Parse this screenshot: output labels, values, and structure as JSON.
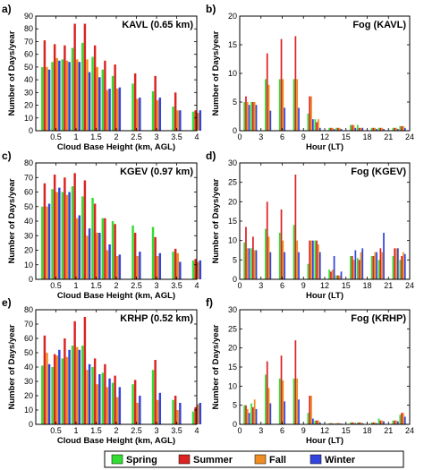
{
  "legend": {
    "items": [
      {
        "label": "Spring",
        "color": "#33dd33"
      },
      {
        "label": "Summer",
        "color": "#dd2222"
      },
      {
        "label": "Fall",
        "color": "#f08c22"
      },
      {
        "label": "Winter",
        "color": "#3344dd"
      }
    ]
  },
  "chart_data": [
    {
      "panel": "a)",
      "title": "KAVL (0.65 km)",
      "type": "bar",
      "xlabel": "Cloud Base Height (km, AGL)",
      "ylabel": "Number of Days/year",
      "xlim": [
        0,
        4
      ],
      "ylim": [
        0,
        90
      ],
      "xticks": [
        0.5,
        1,
        1.5,
        2,
        2.5,
        3,
        3.5,
        4
      ],
      "yticks": [
        0,
        10,
        20,
        30,
        40,
        50,
        60,
        70,
        80,
        90
      ],
      "x": [
        0.25,
        0.5,
        0.75,
        1,
        1.25,
        1.5,
        1.75,
        2,
        2.5,
        3,
        3.5,
        4
      ],
      "series": [
        {
          "name": "Spring",
          "values": [
            50,
            54,
            56,
            65,
            69,
            58,
            48,
            43,
            37,
            31,
            19,
            15
          ]
        },
        {
          "name": "Summer",
          "values": [
            71,
            68,
            67,
            84,
            84,
            67,
            55,
            52,
            45,
            43,
            30,
            16
          ]
        },
        {
          "name": "Fall",
          "values": [
            50,
            57,
            55,
            56,
            56,
            50,
            32,
            33,
            25,
            24,
            16,
            14
          ]
        },
        {
          "name": "Winter",
          "values": [
            48,
            55,
            54,
            54,
            46,
            42,
            33,
            34,
            26,
            26,
            16,
            16
          ]
        }
      ]
    },
    {
      "panel": "b)",
      "title": "Fog (KAVL)",
      "type": "bar",
      "xlabel": "Hour (LT)",
      "ylabel": "Number of Days/year",
      "xlim": [
        0,
        24
      ],
      "ylim": [
        0,
        20
      ],
      "xticks": [
        0,
        3,
        6,
        9,
        12,
        15,
        18,
        21,
        24
      ],
      "yticks": [
        0,
        5,
        10,
        15,
        20
      ],
      "x": [
        1,
        2,
        4,
        6,
        8,
        10,
        11,
        13,
        14,
        16,
        17,
        19,
        20,
        22,
        23
      ],
      "series": [
        {
          "name": "Spring",
          "values": [
            5,
            5,
            9,
            9,
            9,
            3,
            2,
            0.5,
            0.5,
            1,
            1,
            0.5,
            0.5,
            0.5,
            0.8
          ]
        },
        {
          "name": "Summer",
          "values": [
            6,
            5,
            13.5,
            16,
            16.5,
            6,
            1.5,
            0.5,
            0.5,
            1,
            0.5,
            0.5,
            0.5,
            0.5,
            0.8
          ]
        },
        {
          "name": "Fall",
          "values": [
            5,
            5,
            8,
            9,
            9,
            6,
            2,
            0.5,
            0.5,
            1,
            0.5,
            0.5,
            0.5,
            0.5,
            0.8
          ]
        },
        {
          "name": "Winter",
          "values": [
            4.5,
            4.5,
            3.5,
            4,
            4,
            2,
            0.5,
            0.3,
            0.3,
            0.5,
            0.5,
            0.3,
            0.3,
            0.3,
            0.5
          ]
        }
      ]
    },
    {
      "panel": "c)",
      "title": "KGEV (0.97 km)",
      "type": "bar",
      "xlabel": "Cloud Base Height (km, AGL)",
      "ylabel": "Number of Days/year",
      "xlim": [
        0,
        4
      ],
      "ylim": [
        0,
        80
      ],
      "xticks": [
        0.5,
        1,
        1.5,
        2,
        2.5,
        3,
        3.5,
        4
      ],
      "yticks": [
        0,
        10,
        20,
        30,
        40,
        50,
        60,
        70,
        80
      ],
      "x": [
        0.25,
        0.5,
        0.75,
        1,
        1.25,
        1.5,
        1.75,
        2,
        2.5,
        3,
        3.5,
        4
      ],
      "series": [
        {
          "name": "Spring",
          "values": [
            50,
            62,
            60,
            64,
            57,
            56,
            42,
            40,
            37,
            36,
            19,
            13
          ]
        },
        {
          "name": "Summer",
          "values": [
            66,
            72,
            70,
            73,
            68,
            52,
            42,
            38,
            32,
            29,
            21,
            14
          ]
        },
        {
          "name": "Fall",
          "values": [
            50,
            60,
            58,
            42,
            30,
            32,
            20,
            16,
            16,
            16,
            18,
            12
          ]
        },
        {
          "name": "Winter",
          "values": [
            52,
            63,
            60,
            44,
            35,
            32,
            24,
            17,
            19,
            18,
            12,
            13
          ]
        }
      ]
    },
    {
      "panel": "d)",
      "title": "Fog (KGEV)",
      "type": "bar",
      "xlabel": "Hour (LT)",
      "ylabel": "Number of Days/year",
      "xlim": [
        0,
        24
      ],
      "ylim": [
        0,
        30
      ],
      "xticks": [
        0,
        3,
        6,
        9,
        12,
        15,
        18,
        21,
        24
      ],
      "yticks": [
        0,
        5,
        10,
        15,
        20,
        25,
        30
      ],
      "x": [
        1,
        2,
        4,
        6,
        8,
        10,
        11,
        13,
        14,
        16,
        17,
        19,
        20,
        22,
        23
      ],
      "series": [
        {
          "name": "Spring",
          "values": [
            9.5,
            8,
            13,
            12,
            14,
            4,
            10,
            2.5,
            1,
            6,
            5.5,
            6,
            5,
            6,
            5
          ]
        },
        {
          "name": "Summer",
          "values": [
            13.5,
            11,
            20,
            18,
            27,
            10,
            10,
            2,
            1,
            6,
            5,
            6,
            8,
            8,
            6
          ]
        },
        {
          "name": "Fall",
          "values": [
            8,
            7.5,
            11,
            10,
            10,
            10,
            9,
            2.5,
            1,
            5,
            7,
            7,
            7,
            8,
            7
          ]
        },
        {
          "name": "Winter",
          "values": [
            8,
            7.5,
            7,
            7,
            7,
            10,
            7,
            6,
            2,
            7.5,
            8,
            7,
            12,
            8,
            6.5
          ]
        }
      ]
    },
    {
      "panel": "e)",
      "title": "KRHP (0.52 km)",
      "type": "bar",
      "xlabel": "Cloud Base Height (km, AGL)",
      "ylabel": "Number of Days/year",
      "xlim": [
        0,
        4
      ],
      "ylim": [
        0,
        80
      ],
      "xticks": [
        0.5,
        1,
        1.5,
        2,
        2.5,
        3,
        3.5,
        4
      ],
      "yticks": [
        0,
        10,
        20,
        30,
        40,
        50,
        60,
        70,
        80
      ],
      "x": [
        0.25,
        0.5,
        0.75,
        1,
        1.25,
        1.5,
        1.75,
        2,
        2.5,
        3,
        3.5,
        4
      ],
      "series": [
        {
          "name": "Spring",
          "values": [
            41,
            40,
            46,
            55,
            55,
            40,
            36,
            29,
            28,
            38,
            17,
            9
          ]
        },
        {
          "name": "Summer",
          "values": [
            62,
            49,
            60,
            72,
            75,
            46,
            42,
            34,
            31,
            45,
            20,
            12
          ]
        },
        {
          "name": "Fall",
          "values": [
            50,
            48,
            47,
            54,
            38,
            28,
            26,
            19,
            15,
            17,
            10,
            14
          ]
        },
        {
          "name": "Winter",
          "values": [
            42,
            52,
            52,
            52,
            42,
            35,
            32,
            26,
            20,
            22,
            15,
            15
          ]
        }
      ]
    },
    {
      "panel": "f)",
      "title": "Fog (KRHP)",
      "type": "bar",
      "xlabel": "Hour (LT)",
      "ylabel": "Number of Days/year",
      "xlim": [
        0,
        24
      ],
      "ylim": [
        0,
        30
      ],
      "xticks": [
        0,
        3,
        6,
        9,
        12,
        15,
        18,
        21,
        24
      ],
      "yticks": [
        0,
        5,
        10,
        15,
        20,
        25,
        30
      ],
      "x": [
        1,
        2,
        4,
        6,
        8,
        10,
        11,
        13,
        14,
        16,
        17,
        19,
        20,
        22,
        23
      ],
      "series": [
        {
          "name": "Spring",
          "values": [
            5,
            5.5,
            13,
            12,
            12,
            3,
            1,
            0.3,
            0.3,
            0.5,
            0.5,
            0.5,
            1.5,
            1,
            2.5
          ]
        },
        {
          "name": "Summer",
          "values": [
            5,
            4.5,
            16.5,
            18,
            22,
            7.5,
            1,
            0.3,
            0.3,
            0.5,
            0.5,
            0.5,
            1,
            1,
            3
          ]
        },
        {
          "name": "Fall",
          "values": [
            4,
            6.5,
            9.5,
            11.5,
            12,
            7.5,
            1,
            0.3,
            0.3,
            0.5,
            0.5,
            0.5,
            1,
            1,
            3
          ]
        },
        {
          "name": "Winter",
          "values": [
            3,
            4,
            5.5,
            6,
            6.5,
            1.5,
            0.5,
            0.2,
            0.2,
            0.3,
            0.3,
            0.3,
            0.8,
            0.8,
            2
          ]
        }
      ]
    }
  ]
}
